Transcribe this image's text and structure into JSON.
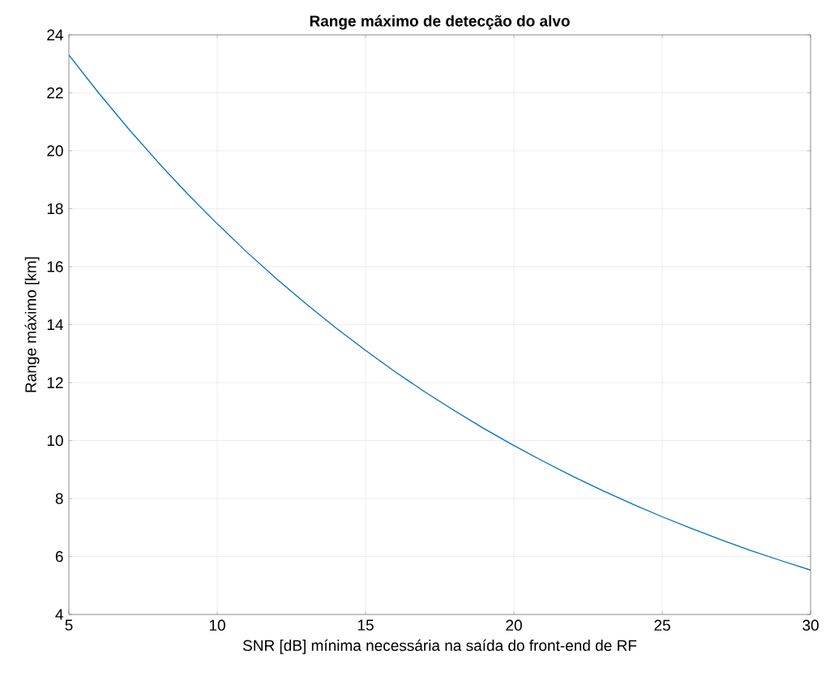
{
  "chart_data": {
    "type": "line",
    "title": "**Range máximo de detecção do alvo**",
    "xlabel": "SNR [dB] mínima necessária na saída do front-end de RF",
    "ylabel": "Range máximo [km]",
    "x": [
      5,
      6,
      7,
      8,
      9,
      10,
      11,
      12,
      13,
      14,
      15,
      16,
      17,
      18,
      19,
      20,
      21,
      22,
      23,
      24,
      25,
      26,
      27,
      28,
      29,
      30
    ],
    "series": [
      {
        "color": "#0072bd",
        "values": [
          23.3,
          22.0,
          20.77,
          19.61,
          18.51,
          17.48,
          16.5,
          15.58,
          14.71,
          13.89,
          13.11,
          12.37,
          11.68,
          11.03,
          10.41,
          9.83,
          9.28,
          8.76,
          8.27,
          7.81,
          7.37,
          6.96,
          6.57,
          6.2,
          5.86,
          5.53
        ]
      }
    ],
    "xlim": [
      5,
      30
    ],
    "ylim": [
      4,
      24
    ],
    "xticks": [
      5,
      10,
      15,
      20,
      25,
      30
    ],
    "yticks": [
      4,
      6,
      8,
      10,
      12,
      14,
      16,
      18,
      20,
      22,
      24
    ],
    "grid": true,
    "marker": "none",
    "line_style": "solid"
  }
}
